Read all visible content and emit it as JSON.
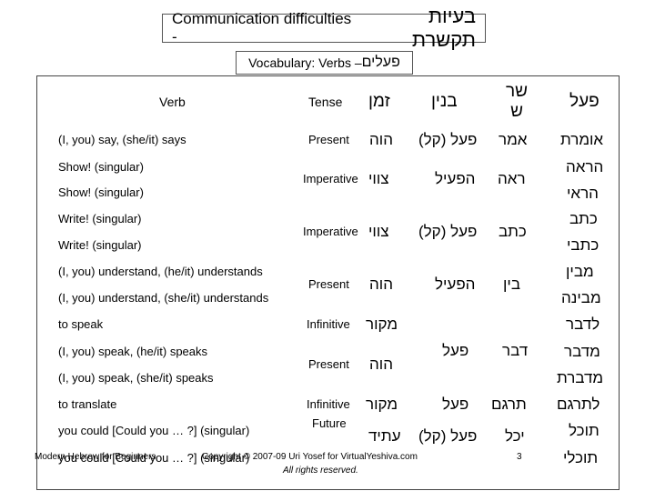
{
  "title": {
    "english": "Communication difficulties -",
    "hebrew": "בעיות תקשרת"
  },
  "subtitle": {
    "english": "Vocabulary: Verbs –",
    "hebrew": "פעלים"
  },
  "headers": {
    "verb": "Verb",
    "tense": "Tense",
    "zman": "זמן",
    "binyan": "בנין",
    "shoresh": "שר ש",
    "poal": "פעל"
  },
  "rows": [
    {
      "verb": "(I, you) say, (she/it) says",
      "tense": "Present",
      "zman": "הוה",
      "binyan": "פעל (קל)",
      "shoresh": "אמר",
      "poal": "אומרת"
    },
    {
      "verb": "Show! (singular)",
      "poal": "הראה"
    },
    {
      "verb": "Show! (singular)",
      "tense": "Imperative",
      "zman": "צווי",
      "binyan": "הפעיל",
      "shoresh": "ראה",
      "poal": "הראי"
    },
    {
      "verb": "Write! (singular)",
      "poal": "כתב"
    },
    {
      "verb": "Write! (singular)",
      "tense": "Imperative",
      "zman": "צווי",
      "binyan": "פעל (קל)",
      "shoresh": "כתב",
      "poal": "כתבי"
    },
    {
      "verb": "(I, you) understand, (he/it) understands",
      "poal": "מבין"
    },
    {
      "verb": "(I, you) understand, (she/it) understands",
      "tense": "Present",
      "zman": "הוה",
      "binyan": "הפעיל",
      "shoresh": "בין",
      "poal": "מבינה"
    },
    {
      "verb": "to speak",
      "tense": "Infinitive",
      "zman": "מקור",
      "poal": "לדבר"
    },
    {
      "verb": "(I, you) speak, (he/it) speaks",
      "binyan": "פעל",
      "shoresh": "דבר",
      "poal": "מדבר"
    },
    {
      "verb": "(I, you) speak, (she/it) speaks",
      "tense": "Present",
      "zman": "הוה",
      "poal": "מדברת"
    },
    {
      "verb": "to translate",
      "tense": "Infinitive",
      "zman": "מקור",
      "binyan": "פעל",
      "shoresh": "תרגם",
      "poal": "לתרגם"
    },
    {
      "verb": "you could [Could you … ?] (singular)",
      "tense": "Future",
      "zman": "עתיד",
      "binyan": "פעל (קל)",
      "shoresh": "יכל",
      "poal": "תוכל"
    },
    {
      "verb": "you could [Could you … ?] (singular)",
      "poal": "תוכלי"
    }
  ],
  "footer": {
    "left": "Modern Hebrew for Beginners",
    "copyright": "Copyright © 2007-09 Uri Yosef for VirtualYeshiva.com",
    "rights": "All rights reserved.",
    "page": "3"
  }
}
